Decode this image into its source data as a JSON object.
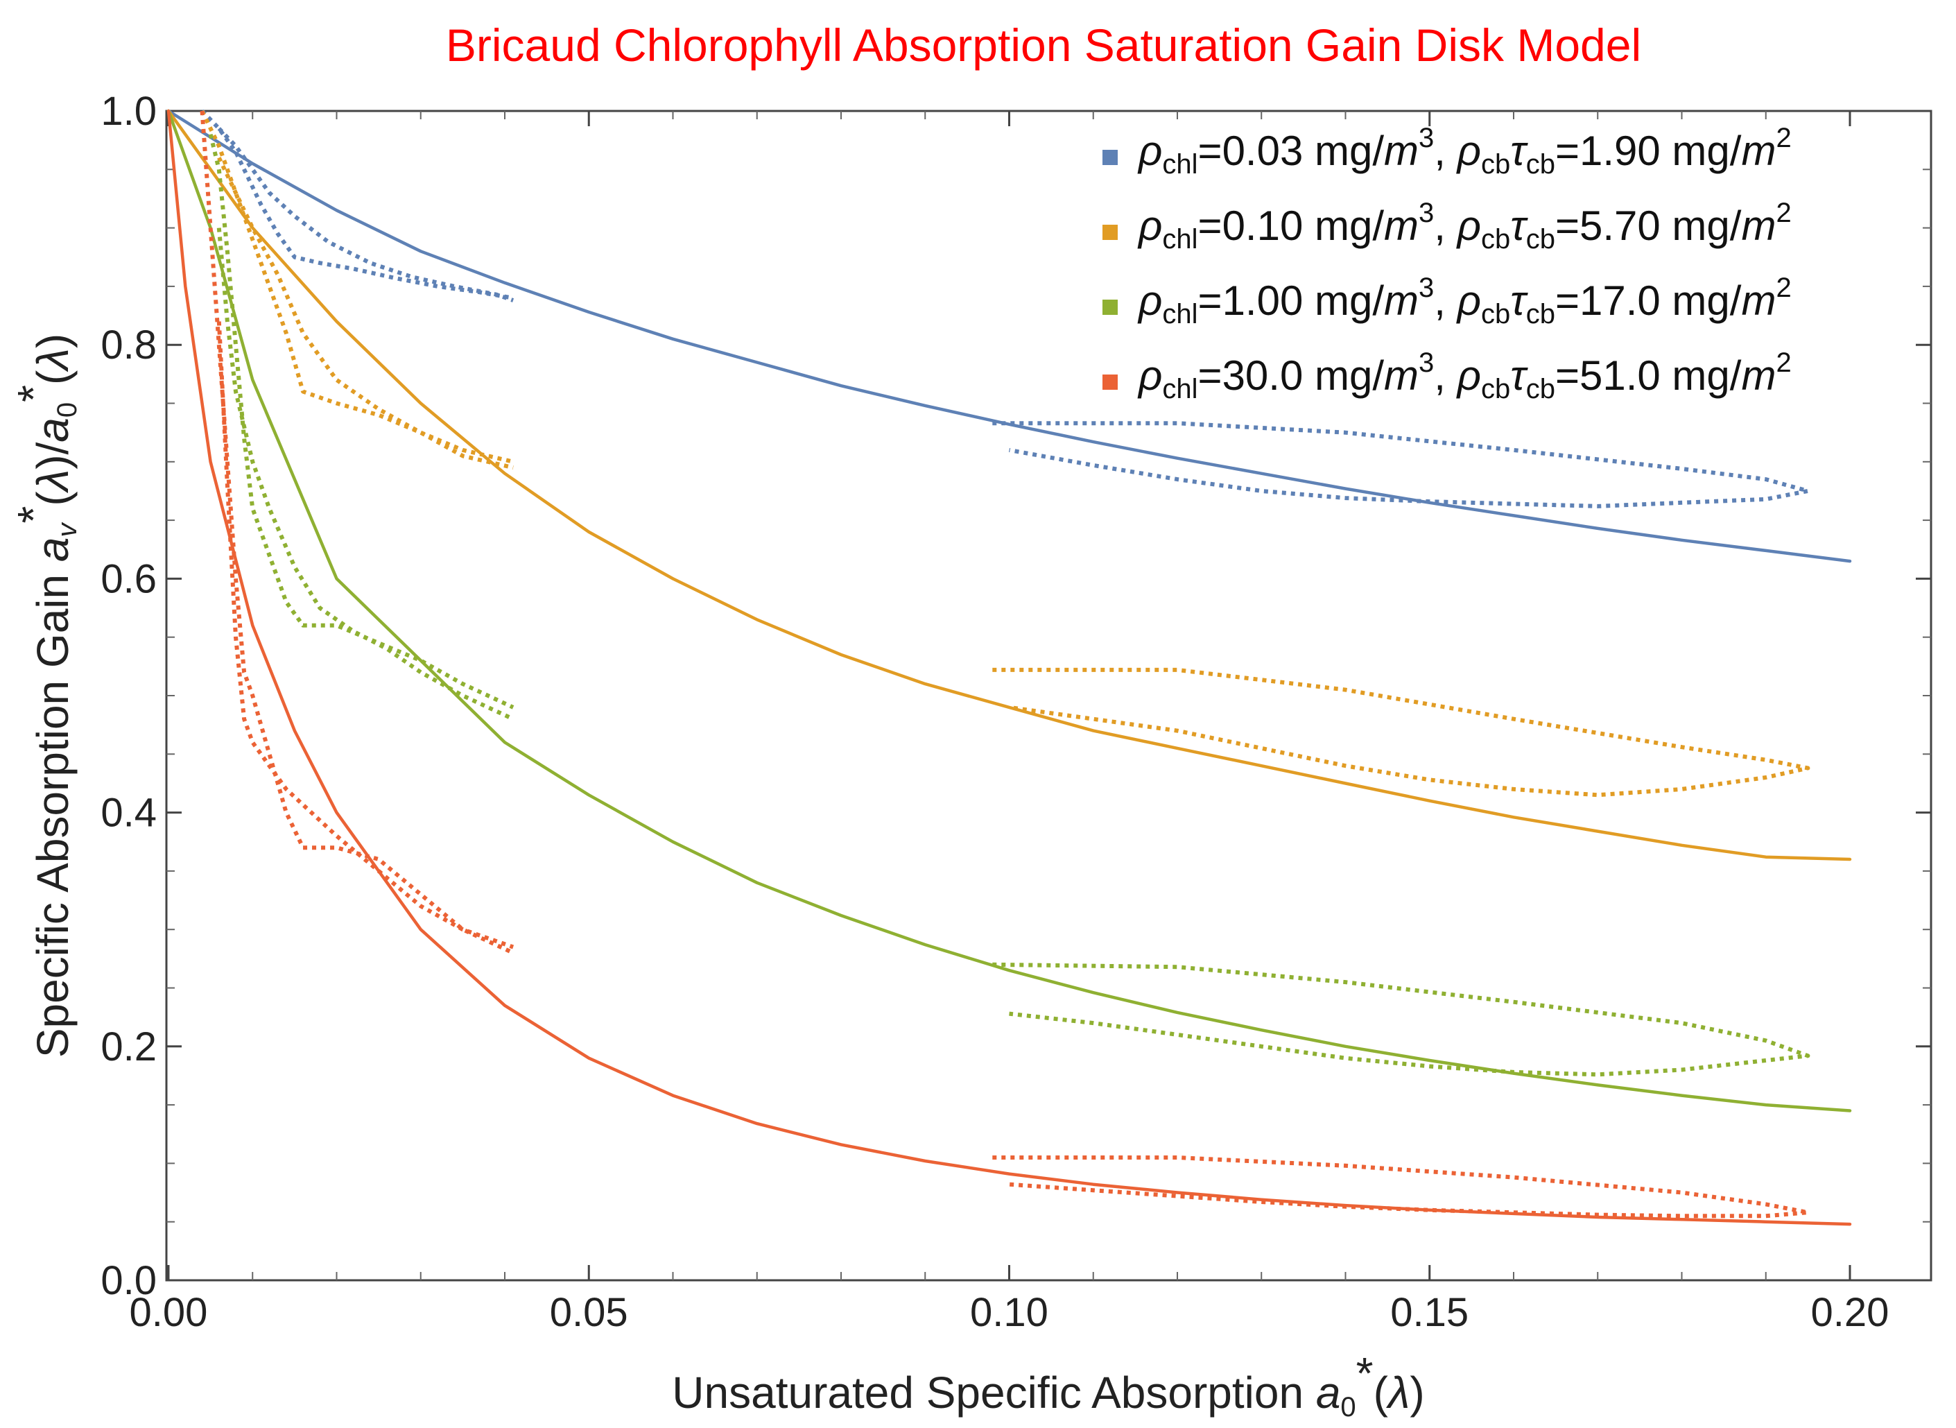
{
  "chart_data": {
    "type": "line",
    "title": "Bricaud Chlorophyll Absorption Saturation Gain Disk Model",
    "title_color": "#FF0000",
    "xlabel": "Unsaturated Specific Absorption a0*(λ)",
    "ylabel": "Specific Absorption Gain av*(λ)/a0*(λ)",
    "xlim": [
      0.0,
      0.21
    ],
    "ylim": [
      0.0,
      1.0
    ],
    "x_ticks": [
      "0.00",
      "0.05",
      "0.10",
      "0.15",
      "0.20"
    ],
    "y_ticks": [
      "0.0",
      "0.2",
      "0.4",
      "0.6",
      "0.8",
      "1.0"
    ],
    "legend_position": "top-right",
    "series": [
      {
        "name": "ρchl=0.03 mg/m3, ρcbτcb=1.90 mg/m2",
        "legend": {
          "rho_chl": "0.03 mg/",
          "m_chl": "m",
          "exp_chl": "3",
          "rho_cb_tau_cb": "1.90 mg/",
          "m_cb": "m",
          "exp_cb": "2"
        },
        "color": "#5E81B5",
        "solid": {
          "x": [
            0.0,
            0.01,
            0.02,
            0.03,
            0.04,
            0.05,
            0.06,
            0.07,
            0.08,
            0.09,
            0.1,
            0.11,
            0.12,
            0.13,
            0.14,
            0.15,
            0.16,
            0.17,
            0.18,
            0.19,
            0.2
          ],
          "y": [
            1.0,
            0.955,
            0.915,
            0.88,
            0.853,
            0.828,
            0.805,
            0.785,
            0.765,
            0.748,
            0.732,
            0.717,
            0.703,
            0.69,
            0.677,
            0.665,
            0.654,
            0.643,
            0.633,
            0.624,
            0.615
          ]
        },
        "dotted": [
          {
            "x": [
              0.004,
              0.006,
              0.008,
              0.009,
              0.011,
              0.013,
              0.015,
              0.018,
              0.022,
              0.027,
              0.032,
              0.037,
              0.041
            ],
            "y": [
              1.0,
              0.985,
              0.965,
              0.95,
              0.92,
              0.895,
              0.875,
              0.87,
              0.865,
              0.857,
              0.85,
              0.845,
              0.84
            ]
          },
          {
            "x": [
              0.006,
              0.008,
              0.01,
              0.012,
              0.015,
              0.019,
              0.024,
              0.029,
              0.034,
              0.039,
              0.041
            ],
            "y": [
              0.985,
              0.97,
              0.95,
              0.93,
              0.91,
              0.888,
              0.87,
              0.858,
              0.85,
              0.843,
              0.838
            ]
          },
          {
            "x": [
              0.098,
              0.12,
              0.14,
              0.16,
              0.18,
              0.19,
              0.195,
              0.19,
              0.18,
              0.17,
              0.16,
              0.15,
              0.14,
              0.13,
              0.12,
              0.11,
              0.1
            ],
            "y": [
              0.733,
              0.733,
              0.725,
              0.71,
              0.694,
              0.685,
              0.675,
              0.668,
              0.665,
              0.662,
              0.664,
              0.666,
              0.669,
              0.675,
              0.685,
              0.697,
              0.71
            ]
          }
        ]
      },
      {
        "name": "ρchl=0.10 mg/m3, ρcbτcb=5.70 mg/m2",
        "legend": {
          "rho_chl": "0.10 mg/",
          "m_chl": "m",
          "exp_chl": "3",
          "rho_cb_tau_cb": "5.70 mg/",
          "m_cb": "m",
          "exp_cb": "2"
        },
        "color": "#E19C24",
        "solid": {
          "x": [
            0.0,
            0.01,
            0.02,
            0.03,
            0.04,
            0.05,
            0.06,
            0.07,
            0.08,
            0.09,
            0.1,
            0.11,
            0.12,
            0.13,
            0.14,
            0.15,
            0.16,
            0.17,
            0.18,
            0.19,
            0.2
          ],
          "y": [
            1.0,
            0.9,
            0.82,
            0.75,
            0.69,
            0.64,
            0.6,
            0.565,
            0.535,
            0.51,
            0.49,
            0.47,
            0.455,
            0.44,
            0.425,
            0.41,
            0.396,
            0.384,
            0.372,
            0.362,
            0.36
          ]
        },
        "dotted": [
          {
            "x": [
              0.004,
              0.006,
              0.008,
              0.01,
              0.012,
              0.014,
              0.016,
              0.02,
              0.025,
              0.03,
              0.035,
              0.041
            ],
            "y": [
              1.0,
              0.97,
              0.93,
              0.89,
              0.85,
              0.81,
              0.76,
              0.75,
              0.74,
              0.725,
              0.705,
              0.695
            ]
          },
          {
            "x": [
              0.006,
              0.008,
              0.01,
              0.013,
              0.016,
              0.02,
              0.025,
              0.03,
              0.035,
              0.041
            ],
            "y": [
              0.96,
              0.93,
              0.9,
              0.86,
              0.81,
              0.77,
              0.745,
              0.725,
              0.71,
              0.7
            ]
          },
          {
            "x": [
              0.098,
              0.12,
              0.14,
              0.16,
              0.18,
              0.19,
              0.195,
              0.19,
              0.18,
              0.17,
              0.16,
              0.15,
              0.14,
              0.13,
              0.12,
              0.11,
              0.1
            ],
            "y": [
              0.522,
              0.522,
              0.505,
              0.48,
              0.456,
              0.445,
              0.438,
              0.43,
              0.42,
              0.415,
              0.42,
              0.428,
              0.44,
              0.455,
              0.47,
              0.48,
              0.49
            ]
          }
        ]
      },
      {
        "name": "ρchl=1.00 mg/m3, ρcbτcb=17.0 mg/m2",
        "legend": {
          "rho_chl": "1.00 mg/",
          "m_chl": "m",
          "exp_chl": "3",
          "rho_cb_tau_cb": "17.0 mg/",
          "m_cb": "m",
          "exp_cb": "2"
        },
        "color": "#8FB032",
        "solid": {
          "x": [
            0.0,
            0.005,
            0.01,
            0.02,
            0.03,
            0.04,
            0.05,
            0.06,
            0.07,
            0.08,
            0.09,
            0.1,
            0.11,
            0.12,
            0.13,
            0.14,
            0.15,
            0.16,
            0.17,
            0.18,
            0.19,
            0.2
          ],
          "y": [
            1.0,
            0.9,
            0.77,
            0.6,
            0.53,
            0.46,
            0.415,
            0.375,
            0.34,
            0.312,
            0.287,
            0.265,
            0.246,
            0.229,
            0.214,
            0.2,
            0.188,
            0.177,
            0.167,
            0.158,
            0.15,
            0.145
          ]
        },
        "dotted": [
          {
            "x": [
              0.005,
              0.006,
              0.007,
              0.008,
              0.009,
              0.01,
              0.012,
              0.014,
              0.016,
              0.02,
              0.025,
              0.03,
              0.035,
              0.041
            ],
            "y": [
              0.98,
              0.95,
              0.88,
              0.8,
              0.72,
              0.66,
              0.62,
              0.58,
              0.56,
              0.56,
              0.545,
              0.53,
              0.51,
              0.49
            ]
          },
          {
            "x": [
              0.006,
              0.007,
              0.008,
              0.01,
              0.012,
              0.015,
              0.018,
              0.022,
              0.026,
              0.03,
              0.035,
              0.041
            ],
            "y": [
              0.9,
              0.82,
              0.76,
              0.7,
              0.66,
              0.61,
              0.575,
              0.555,
              0.54,
              0.52,
              0.5,
              0.48
            ]
          },
          {
            "x": [
              0.098,
              0.12,
              0.14,
              0.16,
              0.18,
              0.19,
              0.195,
              0.19,
              0.18,
              0.17,
              0.16,
              0.15,
              0.14,
              0.13,
              0.12,
              0.11,
              0.1
            ],
            "y": [
              0.27,
              0.268,
              0.255,
              0.238,
              0.22,
              0.205,
              0.192,
              0.188,
              0.18,
              0.176,
              0.178,
              0.183,
              0.19,
              0.2,
              0.21,
              0.22,
              0.228
            ]
          }
        ]
      },
      {
        "name": "ρchl=30.0 mg/m3, ρcbτcb=51.0 mg/m2",
        "legend": {
          "rho_chl": "30.0 mg/",
          "m_chl": "m",
          "exp_chl": "3",
          "rho_cb_tau_cb": "51.0 mg/",
          "m_cb": "m",
          "exp_cb": "2"
        },
        "color": "#EB6235",
        "solid": {
          "x": [
            0.0,
            0.002,
            0.005,
            0.01,
            0.015,
            0.02,
            0.03,
            0.04,
            0.05,
            0.06,
            0.07,
            0.08,
            0.09,
            0.1,
            0.11,
            0.12,
            0.13,
            0.14,
            0.15,
            0.16,
            0.17,
            0.18,
            0.19,
            0.2
          ],
          "y": [
            1.0,
            0.85,
            0.7,
            0.56,
            0.47,
            0.4,
            0.3,
            0.235,
            0.19,
            0.158,
            0.134,
            0.116,
            0.102,
            0.091,
            0.082,
            0.075,
            0.069,
            0.064,
            0.06,
            0.057,
            0.054,
            0.052,
            0.05,
            0.048
          ]
        },
        "dotted": [
          {
            "x": [
              0.004,
              0.005,
              0.006,
              0.007,
              0.008,
              0.009,
              0.01,
              0.012,
              0.014,
              0.016,
              0.02,
              0.025,
              0.03,
              0.035,
              0.041
            ],
            "y": [
              1.0,
              0.9,
              0.8,
              0.7,
              0.6,
              0.52,
              0.5,
              0.45,
              0.4,
              0.37,
              0.37,
              0.36,
              0.33,
              0.3,
              0.28
            ]
          },
          {
            "x": [
              0.006,
              0.007,
              0.008,
              0.009,
              0.01,
              0.012,
              0.014,
              0.017,
              0.02,
              0.025,
              0.03,
              0.035,
              0.041
            ],
            "y": [
              0.82,
              0.68,
              0.55,
              0.48,
              0.46,
              0.44,
              0.42,
              0.4,
              0.38,
              0.35,
              0.32,
              0.3,
              0.285
            ]
          },
          {
            "x": [
              0.098,
              0.12,
              0.14,
              0.16,
              0.18,
              0.19,
              0.195,
              0.19,
              0.18,
              0.17,
              0.16,
              0.15,
              0.14,
              0.13,
              0.12,
              0.11,
              0.1
            ],
            "y": [
              0.105,
              0.105,
              0.098,
              0.088,
              0.075,
              0.065,
              0.058,
              0.055,
              0.055,
              0.056,
              0.058,
              0.06,
              0.063,
              0.067,
              0.072,
              0.077,
              0.082
            ]
          }
        ]
      }
    ]
  }
}
